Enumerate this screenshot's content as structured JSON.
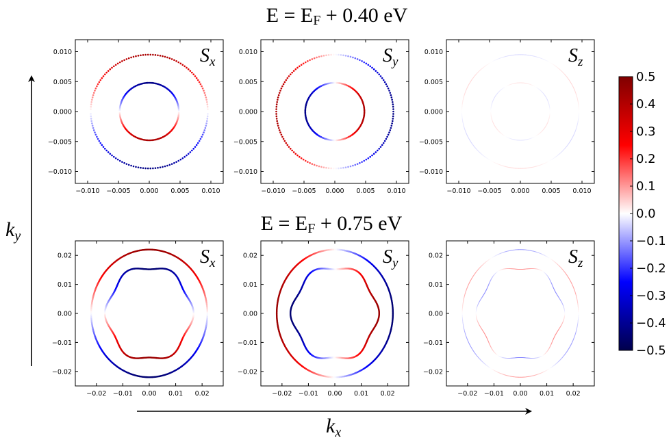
{
  "colors": {
    "cmap": "seismic",
    "cmap_min": "#00004c",
    "cmap_mid": "#ffffff",
    "cmap_max": "#800000"
  },
  "chart_data": [
    {
      "type": "scatter",
      "row_title": {
        "main": "E = E",
        "sub": "F",
        "rest": " + 0.40 eV"
      },
      "panel": {
        "letter": "S",
        "sub": "x"
      },
      "xlim": [
        -0.012,
        0.012
      ],
      "ylim": [
        -0.012,
        0.012
      ],
      "xticks": [
        -0.01,
        -0.005,
        0.0,
        0.005,
        0.01
      ],
      "xticklabels": [
        "−0.010",
        "−0.005",
        "0.000",
        "0.005",
        "0.010"
      ],
      "yticks": [
        -0.01,
        -0.005,
        0.0,
        0.005,
        0.01
      ],
      "yticklabels": [
        "−0.010",
        "−0.005",
        "0.000",
        "0.005",
        "0.010"
      ],
      "series": [
        {
          "radius": 0.0095,
          "spin": "sin",
          "amp": 0.42,
          "style": "dots"
        },
        {
          "radius": 0.0048,
          "spin": "sin",
          "amp": -0.42,
          "style": "dots"
        }
      ],
      "grid": false
    },
    {
      "type": "scatter",
      "panel": {
        "letter": "S",
        "sub": "y"
      },
      "xlim": [
        -0.012,
        0.012
      ],
      "ylim": [
        -0.012,
        0.012
      ],
      "xticks": [
        -0.01,
        -0.005,
        0.0,
        0.005,
        0.01
      ],
      "xticklabels": [
        "−0.010",
        "−0.005",
        "0.000",
        "0.005",
        "0.010"
      ],
      "yticks": [
        -0.01,
        -0.005,
        0.0,
        0.005,
        0.01
      ],
      "yticklabels": [
        "−0.010",
        "−0.005",
        "0.000",
        "0.005",
        "0.010"
      ],
      "series": [
        {
          "radius": 0.0095,
          "spin": "cos",
          "amp": -0.42,
          "style": "dots"
        },
        {
          "radius": 0.0048,
          "spin": "cos",
          "amp": 0.42,
          "style": "dots"
        }
      ],
      "grid": false
    },
    {
      "type": "scatter",
      "panel": {
        "letter": "S",
        "sub": "z"
      },
      "xlim": [
        -0.012,
        0.012
      ],
      "ylim": [
        -0.012,
        0.012
      ],
      "xticks": [
        -0.01,
        -0.005,
        0.0,
        0.005,
        0.01
      ],
      "xticklabels": [
        "−0.010",
        "−0.005",
        "0.000",
        "0.005",
        "0.010"
      ],
      "yticks": [
        -0.01,
        -0.005,
        0.0,
        0.005,
        0.01
      ],
      "yticklabels": [
        "−0.010",
        "−0.005",
        "0.000",
        "0.005",
        "0.010"
      ],
      "series": [
        {
          "radius": 0.0095,
          "spin": "sin3",
          "amp": 0.04,
          "style": "line"
        },
        {
          "radius": 0.0048,
          "spin": "sin3",
          "amp": -0.03,
          "style": "line"
        }
      ],
      "grid": false
    },
    {
      "type": "scatter",
      "row_title": {
        "main": "E = E",
        "sub": "F",
        "rest": " + 0.75 eV"
      },
      "panel": {
        "letter": "S",
        "sub": "x"
      },
      "xlim": [
        -0.028,
        0.028
      ],
      "ylim": [
        -0.025,
        0.025
      ],
      "xticks": [
        -0.02,
        -0.01,
        0.0,
        0.01,
        0.02
      ],
      "xticklabels": [
        "−0.02",
        "−0.01",
        "0.00",
        "0.01",
        "0.02"
      ],
      "yticks": [
        -0.02,
        -0.01,
        0.0,
        0.01,
        0.02
      ],
      "yticklabels": [
        "−0.02",
        "−0.01",
        "0.00",
        "0.01",
        "0.02"
      ],
      "series": [
        {
          "radius": 0.022,
          "spin": "sin",
          "amp": 0.45,
          "style": "line"
        },
        {
          "radius": 0.016,
          "spin": "sin",
          "amp": -0.45,
          "style": "line",
          "warp": 0.05
        }
      ],
      "grid": false
    },
    {
      "type": "scatter",
      "panel": {
        "letter": "S",
        "sub": "y"
      },
      "xlim": [
        -0.028,
        0.028
      ],
      "ylim": [
        -0.025,
        0.025
      ],
      "xticks": [
        -0.02,
        -0.01,
        0.0,
        0.01,
        0.02
      ],
      "xticklabels": [
        "−0.02",
        "−0.01",
        "0.00",
        "0.01",
        "0.02"
      ],
      "yticks": [
        -0.02,
        -0.01,
        0.0,
        0.01,
        0.02
      ],
      "yticklabels": [
        "−0.02",
        "−0.01",
        "0.00",
        "0.01",
        "0.02"
      ],
      "series": [
        {
          "radius": 0.022,
          "spin": "cos",
          "amp": -0.45,
          "style": "line"
        },
        {
          "radius": 0.016,
          "spin": "cos",
          "amp": 0.45,
          "style": "line",
          "warp": 0.05
        }
      ],
      "grid": false
    },
    {
      "type": "scatter",
      "panel": {
        "letter": "S",
        "sub": "z"
      },
      "xlim": [
        -0.028,
        0.028
      ],
      "ylim": [
        -0.025,
        0.025
      ],
      "xticks": [
        -0.02,
        -0.01,
        0.0,
        0.01,
        0.02
      ],
      "xticklabels": [
        "−0.02",
        "−0.01",
        "0.00",
        "0.01",
        "0.02"
      ],
      "yticks": [
        -0.02,
        -0.01,
        0.0,
        0.01,
        0.02
      ],
      "yticklabels": [
        "−0.02",
        "−0.01",
        "0.00",
        "0.01",
        "0.02"
      ],
      "series": [
        {
          "radius": 0.022,
          "spin": "sin3",
          "amp": 0.1,
          "style": "line"
        },
        {
          "radius": 0.016,
          "spin": "sin3",
          "amp": -0.12,
          "style": "line",
          "warp": 0.05
        }
      ],
      "grid": false
    }
  ],
  "colorbar": {
    "min": -0.5,
    "max": 0.5,
    "ticks": [
      0.5,
      0.4,
      0.3,
      0.2,
      0.1,
      0.0,
      -0.1,
      -0.2,
      -0.3,
      -0.4,
      -0.5
    ],
    "ticklabels": [
      "0.5",
      "0.4",
      "0.3",
      "0.2",
      "0.1",
      "0.0",
      "−0.1",
      "−0.2",
      "−0.3",
      "−0.4",
      "−0.5"
    ]
  },
  "axes_labels": {
    "kx": {
      "main": "k",
      "sub": "x"
    },
    "ky": {
      "main": "k",
      "sub": "y"
    }
  }
}
